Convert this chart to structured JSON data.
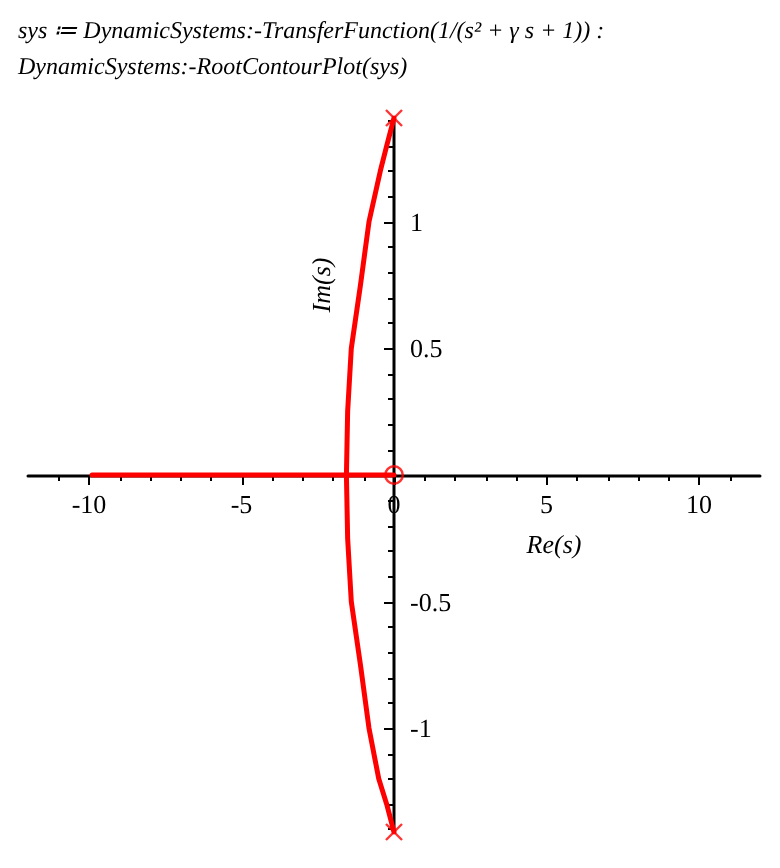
{
  "chart_data": {
    "type": "line",
    "title": "sys ≔ DynamicSystems:-TransferFunction(1/(s² + γ s + 1)) :",
    "subtitle": "DynamicSystems:-RootContourPlot(sys)",
    "xlabel": "Re(s)",
    "ylabel": "Im(s)",
    "series": [
      {
        "color": "#ff0000",
        "x": [
          0,
          -0.24,
          -0.45,
          -0.82,
          -1.1,
          -1.4,
          -1.52,
          -1.56,
          -1.52,
          -1.4,
          -1.1,
          -0.82,
          -0.5,
          -0.24,
          0
        ],
        "values": [
          1.41,
          1.3,
          1.2,
          1.0,
          0.75,
          0.5,
          0.25,
          0,
          -0.25,
          -0.5,
          -0.75,
          -1.0,
          -1.2,
          -1.3,
          -1.41
        ],
        "marker": "none"
      },
      {
        "color": "#ff0000",
        "x": [
          -9.9,
          0
        ],
        "values": [
          0,
          0
        ],
        "marker": "none"
      },
      {
        "type": "scatter",
        "color": "#ff0000",
        "x": [
          0,
          0
        ],
        "values": [
          1.41,
          -1.41
        ],
        "marker": "cross"
      },
      {
        "type": "scatter",
        "color": "#ff0000",
        "x": [
          0
        ],
        "values": [
          0
        ],
        "marker": "circle"
      }
    ],
    "xlim": [
      -12,
      12
    ],
    "xticks": [
      -10,
      -5,
      0,
      5,
      10
    ],
    "ylim": [
      -1.41,
      1.41
    ],
    "yticks": [
      -1,
      -0.5,
      0.5,
      1
    ],
    "grid": false,
    "line_style": "solid"
  }
}
